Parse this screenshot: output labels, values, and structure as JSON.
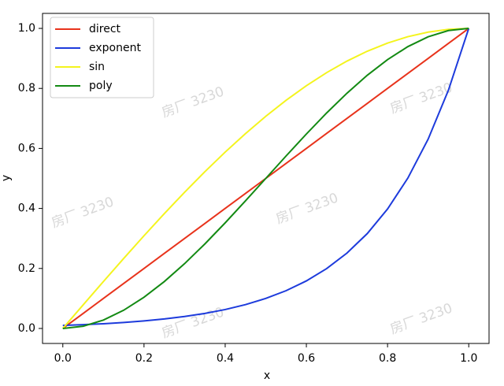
{
  "chart_data": {
    "type": "line",
    "x_label": "x",
    "y_label": "y",
    "x": [
      0,
      0.05,
      0.1,
      0.15,
      0.2,
      0.25,
      0.3,
      0.35,
      0.4,
      0.45,
      0.5,
      0.55,
      0.6,
      0.65,
      0.7,
      0.75,
      0.8,
      0.85,
      0.9,
      0.95,
      1
    ],
    "series": [
      {
        "name": "direct",
        "color": "#e8331c",
        "values": [
          0,
          0.05,
          0.1,
          0.15,
          0.2,
          0.25,
          0.3,
          0.35,
          0.4,
          0.45,
          0.5,
          0.55,
          0.6,
          0.65,
          0.7,
          0.75,
          0.8,
          0.85,
          0.9,
          0.95,
          1
        ]
      },
      {
        "name": "exponent",
        "color": "#1d3bdc",
        "values": [
          0.01,
          0.0126,
          0.0158,
          0.02,
          0.0251,
          0.0316,
          0.0398,
          0.0501,
          0.0631,
          0.0794,
          0.1,
          0.1259,
          0.1585,
          0.1995,
          0.2512,
          0.3162,
          0.3981,
          0.5012,
          0.631,
          0.7943,
          1
        ]
      },
      {
        "name": "sin",
        "color": "#f4f41e",
        "values": [
          0,
          0.0785,
          0.1564,
          0.2334,
          0.309,
          0.3827,
          0.454,
          0.5225,
          0.5878,
          0.6494,
          0.7071,
          0.7604,
          0.809,
          0.8526,
          0.891,
          0.9239,
          0.9511,
          0.9724,
          0.9877,
          0.9969,
          1
        ]
      },
      {
        "name": "poly",
        "color": "#138a13",
        "values": [
          0,
          0.0073,
          0.028,
          0.0608,
          0.104,
          0.1563,
          0.216,
          0.2818,
          0.352,
          0.4253,
          0.5,
          0.5748,
          0.648,
          0.7183,
          0.784,
          0.8438,
          0.896,
          0.9393,
          0.972,
          0.9928,
          1
        ]
      }
    ],
    "xlim": [
      -0.05,
      1.05
    ],
    "ylim": [
      -0.05,
      1.05
    ],
    "xticks": [
      {
        "value": 0,
        "label": "0.0"
      },
      {
        "value": 0.2,
        "label": "0.2"
      },
      {
        "value": 0.4,
        "label": "0.4"
      },
      {
        "value": 0.6,
        "label": "0.6"
      },
      {
        "value": 0.8,
        "label": "0.8"
      },
      {
        "value": 1,
        "label": "1.0"
      }
    ],
    "yticks": [
      {
        "value": 0,
        "label": "0.0"
      },
      {
        "value": 0.2,
        "label": "0.2"
      },
      {
        "value": 0.4,
        "label": "0.4"
      },
      {
        "value": 0.6,
        "label": "0.6"
      },
      {
        "value": 0.8,
        "label": "0.8"
      },
      {
        "value": 1,
        "label": "1.0"
      }
    ],
    "legend": "upper left",
    "watermark": "房厂 3230"
  }
}
